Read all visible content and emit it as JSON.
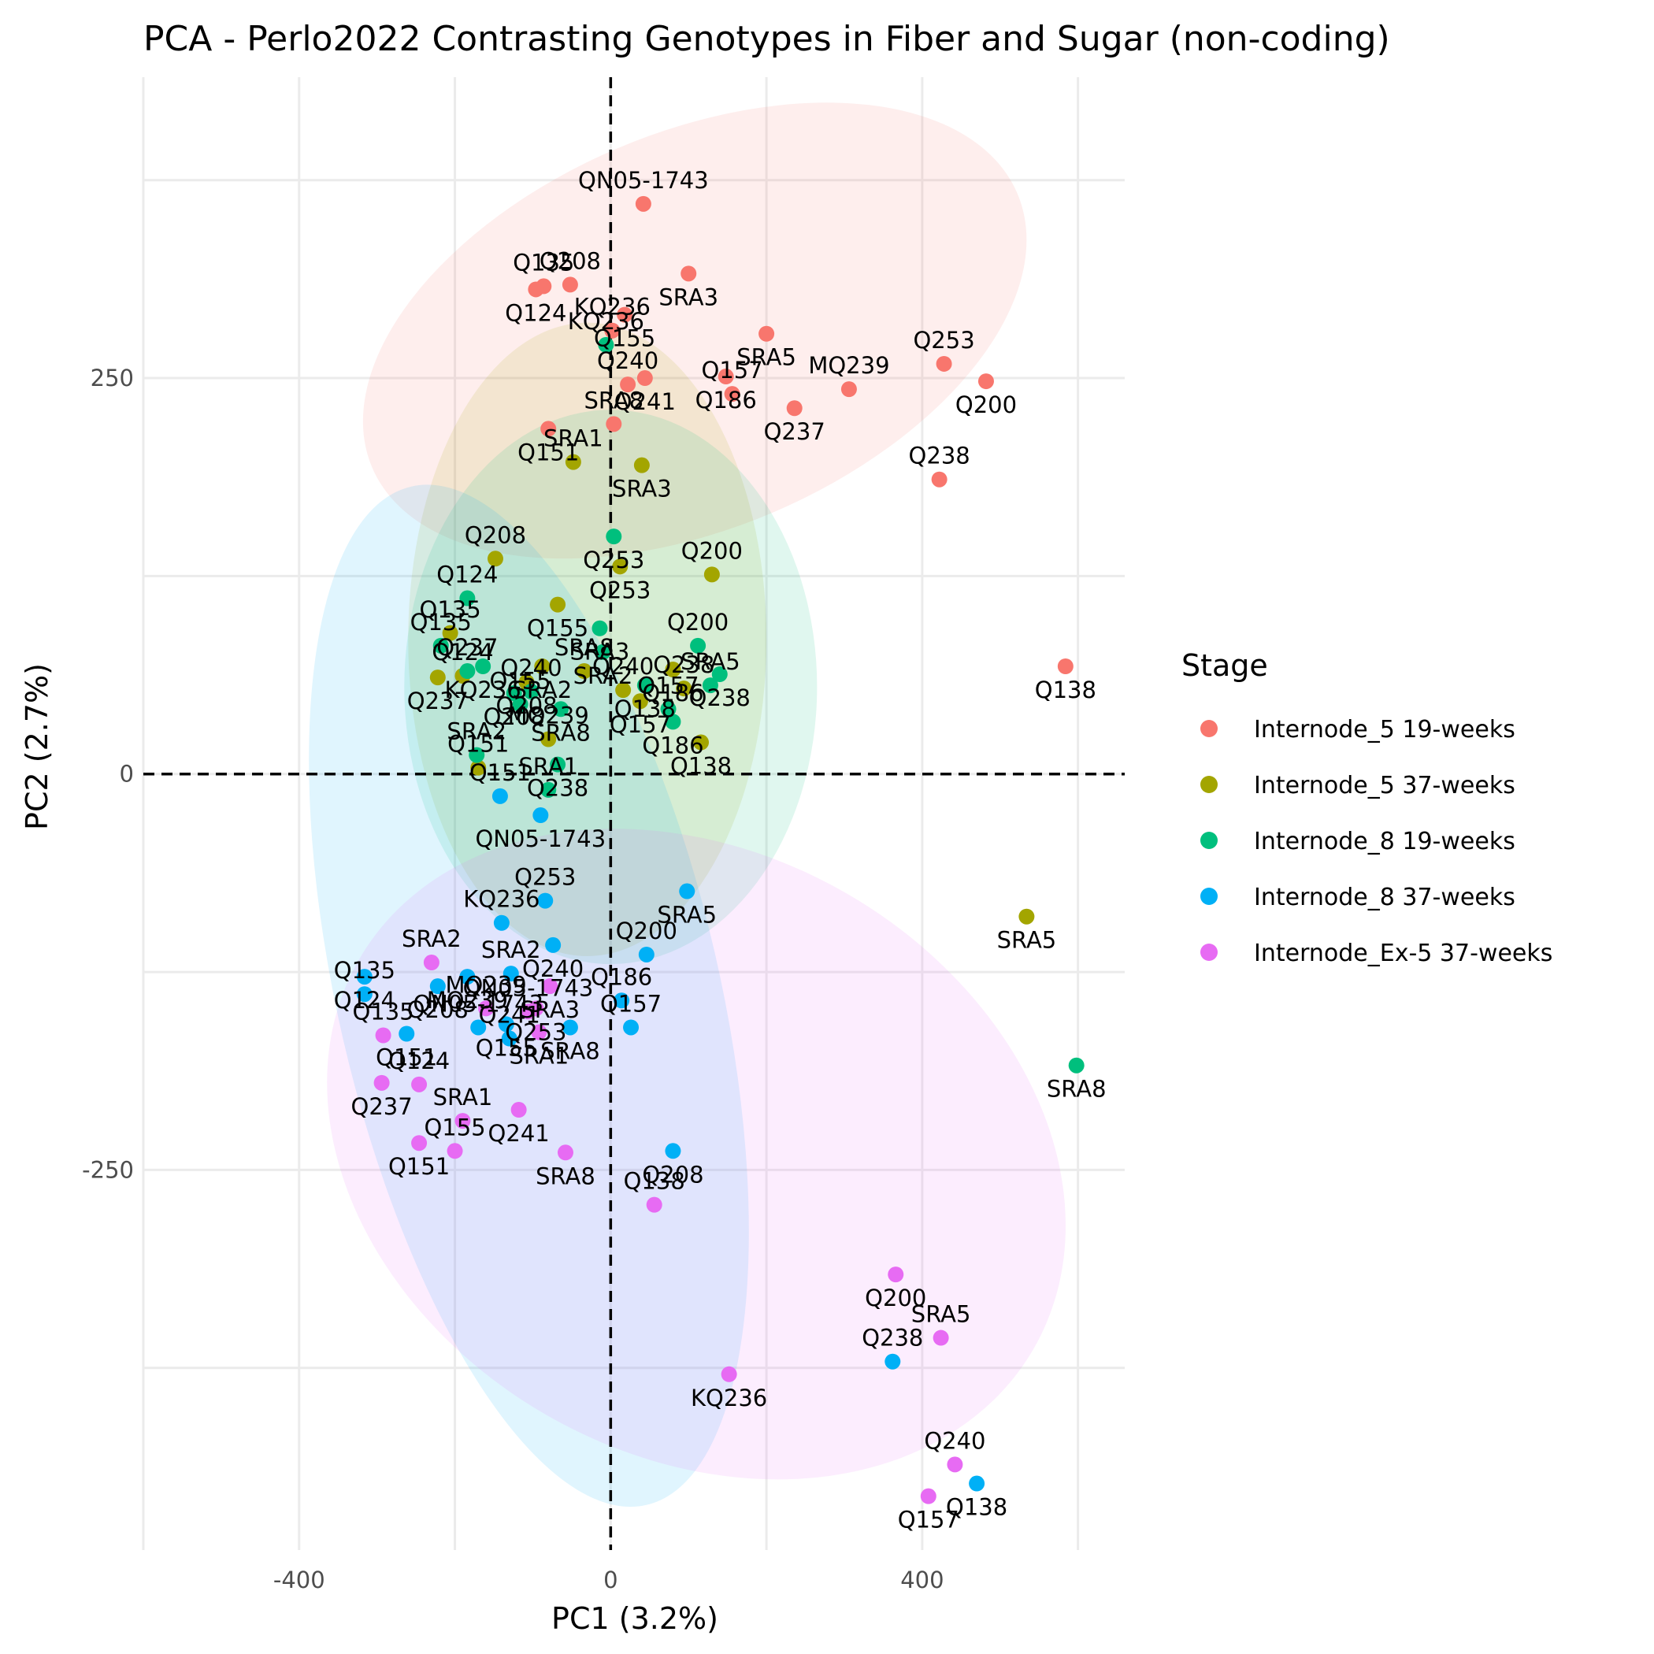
{
  "chart_data": {
    "type": "scatter",
    "title": "PCA - Perlo2022 Contrasting Genotypes in Fiber and Sugar (non-coding)",
    "xlabel": "PC1 (3.2%)",
    "ylabel": "PC2 (2.7%)",
    "xlim": [
      -600,
      660
    ],
    "ylim": [
      -490,
      440
    ],
    "x_ticks": [
      -400,
      0,
      400
    ],
    "y_ticks": [
      -250,
      0,
      250
    ],
    "grid": true,
    "reference_lines": {
      "x": 0,
      "y": 0,
      "style": "dashed"
    },
    "legend": {
      "title": "Stage",
      "placement": "right"
    },
    "series": [
      {
        "name": "Internode_5 19-weeks",
        "color": "#F8766D",
        "ellipse": {
          "cx": 108,
          "cy": 280,
          "rx": 450,
          "ry": 125,
          "angle": -23
        },
        "points": [
          {
            "label": "QN05-1743",
            "x": 42,
            "y": 360
          },
          {
            "label": "SRA3",
            "x": 100,
            "y": 316
          },
          {
            "label": "Q135",
            "x": -86,
            "y": 308
          },
          {
            "label": "Q124",
            "x": -96,
            "y": 306
          },
          {
            "label": "Q208",
            "x": -52,
            "y": 309
          },
          {
            "label": "Q155",
            "x": 18,
            "y": 290
          },
          {
            "label": "KQ236",
            "x": 2,
            "y": 280
          },
          {
            "label": "SRA5",
            "x": 200,
            "y": 278
          },
          {
            "label": "Q253",
            "x": 428,
            "y": 259
          },
          {
            "label": "Q200",
            "x": 482,
            "y": 248
          },
          {
            "label": "MQ239",
            "x": 306,
            "y": 243
          },
          {
            "label": "Q241",
            "x": 44,
            "y": 250
          },
          {
            "label": "Q240",
            "x": 22,
            "y": 246
          },
          {
            "label": "Q186",
            "x": 148,
            "y": 251
          },
          {
            "label": "Q157",
            "x": 156,
            "y": 240
          },
          {
            "label": "Q237",
            "x": 236,
            "y": 231
          },
          {
            "label": "SRA8",
            "x": 4,
            "y": 221
          },
          {
            "label": "Q151",
            "x": -80,
            "y": 218
          },
          {
            "label": "Q238",
            "x": 422,
            "y": 186
          },
          {
            "label": "Q138",
            "x": 584,
            "y": 68
          }
        ]
      },
      {
        "name": "Internode_5 37-weeks",
        "color": "#A3A500",
        "ellipse": {
          "cx": -30,
          "cy": 85,
          "rx": 230,
          "ry": 200,
          "angle": 0
        },
        "points": [
          {
            "label": "SRA1",
            "x": -48,
            "y": 197
          },
          {
            "label": "SRA3",
            "x": 40,
            "y": 195
          },
          {
            "label": "Q208",
            "x": -148,
            "y": 136
          },
          {
            "label": "Q253",
            "x": 12,
            "y": 131
          },
          {
            "label": "Q200",
            "x": 130,
            "y": 126
          },
          {
            "label": "Q155",
            "x": -68,
            "y": 107
          },
          {
            "label": "Q135",
            "x": -206,
            "y": 89
          },
          {
            "label": "SRA2",
            "x": -88,
            "y": 68
          },
          {
            "label": "SRA8",
            "x": -34,
            "y": 65
          },
          {
            "label": "Q186",
            "x": 80,
            "y": 66
          },
          {
            "label": "Q124",
            "x": -190,
            "y": 62
          },
          {
            "label": "Q237",
            "x": -222,
            "y": 61
          },
          {
            "label": "Q240",
            "x": 16,
            "y": 53
          },
          {
            "label": "Q157",
            "x": 38,
            "y": 46
          },
          {
            "label": "Q238",
            "x": 94,
            "y": 54
          },
          {
            "label": "Q208",
            "x": -108,
            "y": 58
          },
          {
            "label": "MQ239",
            "x": -80,
            "y": 22
          },
          {
            "label": "Q138",
            "x": 116,
            "y": 20
          },
          {
            "label": "Q151",
            "x": -170,
            "y": 4
          },
          {
            "label": "SRA5",
            "x": 534,
            "y": -90
          }
        ]
      },
      {
        "name": "Internode_8 19-weeks",
        "color": "#00BF7D",
        "ellipse": {
          "cx": 0,
          "cy": 55,
          "rx": 265,
          "ry": 175,
          "angle": 0
        },
        "points": [
          {
            "label": "KQ236",
            "x": -6,
            "y": 271
          },
          {
            "label": "Q253",
            "x": 4,
            "y": 150
          },
          {
            "label": "Q124",
            "x": -184,
            "y": 111
          },
          {
            "label": "SRA3",
            "x": -14,
            "y": 92
          },
          {
            "label": "Q135",
            "x": -218,
            "y": 81
          },
          {
            "label": "KQ236",
            "x": -164,
            "y": 68
          },
          {
            "label": "Q200",
            "x": 112,
            "y": 81
          },
          {
            "label": "Q238",
            "x": 140,
            "y": 63
          },
          {
            "label": "Q237",
            "x": -184,
            "y": 65
          },
          {
            "label": "SRA2",
            "x": -10,
            "y": 77
          },
          {
            "label": "SRA5",
            "x": 128,
            "y": 56
          },
          {
            "label": "Q138",
            "x": 44,
            "y": 56
          },
          {
            "label": "Q240",
            "x": -102,
            "y": 52
          },
          {
            "label": "Q208",
            "x": -124,
            "y": 51
          },
          {
            "label": "Q155",
            "x": -116,
            "y": 44
          },
          {
            "label": "SRA8",
            "x": -64,
            "y": 41
          },
          {
            "label": "Q157",
            "x": 74,
            "y": 41
          },
          {
            "label": "Q186",
            "x": 80,
            "y": 33
          },
          {
            "label": "SRA2",
            "x": -172,
            "y": 12
          },
          {
            "label": "Q238",
            "x": -68,
            "y": 6
          },
          {
            "label": "SRA1",
            "x": -80,
            "y": -10
          },
          {
            "label": "SRA8",
            "x": 598,
            "y": -184
          }
        ]
      },
      {
        "name": "Internode_8 37-weeks",
        "color": "#00B0F6",
        "ellipse": {
          "cx": -105,
          "cy": -140,
          "rx": 245,
          "ry": 330,
          "angle": -13
        },
        "points": [
          {
            "label": "Q151",
            "x": -142,
            "y": -14
          },
          {
            "label": "QN05-1743",
            "x": -90,
            "y": -26
          },
          {
            "label": "Q253",
            "x": -84,
            "y": -80
          },
          {
            "label": "SRA5",
            "x": 98,
            "y": -74
          },
          {
            "label": "KQ236",
            "x": -140,
            "y": -94
          },
          {
            "label": "Q240",
            "x": -74,
            "y": -108
          },
          {
            "label": "Q200",
            "x": 46,
            "y": -114
          },
          {
            "label": "Q124",
            "x": -316,
            "y": -128
          },
          {
            "label": "Q135",
            "x": -316,
            "y": -139
          },
          {
            "label": "MQ239",
            "x": -184,
            "y": -128
          },
          {
            "label": "SRA2",
            "x": -128,
            "y": -126
          },
          {
            "label": "Q208",
            "x": -222,
            "y": -134
          },
          {
            "label": "Q186",
            "x": 14,
            "y": -143
          },
          {
            "label": "Q151",
            "x": -262,
            "y": -164
          },
          {
            "label": "QN05-1743",
            "x": -170,
            "y": -160
          },
          {
            "label": "Q155",
            "x": -134,
            "y": -158
          },
          {
            "label": "Q241",
            "x": -130,
            "y": -167
          },
          {
            "label": "SRA8",
            "x": -52,
            "y": -160
          },
          {
            "label": "Q157",
            "x": 26,
            "y": -160
          },
          {
            "label": "Q208",
            "x": 80,
            "y": -238
          },
          {
            "label": "Q238",
            "x": 362,
            "y": -371
          },
          {
            "label": "Q138",
            "x": 470,
            "y": -448
          }
        ]
      },
      {
        "name": "Internode_Ex-5 37-weeks",
        "color": "#E76BF3",
        "ellipse": {
          "cx": 110,
          "cy": -240,
          "rx": 500,
          "ry": 190,
          "angle": 30
        },
        "points": [
          {
            "label": "SRA2",
            "x": -230,
            "y": -119
          },
          {
            "label": "SRA3",
            "x": -78,
            "y": -134
          },
          {
            "label": "MQ239",
            "x": -160,
            "y": -148
          },
          {
            "label": "Q253",
            "x": -96,
            "y": -148
          },
          {
            "label": "QN05-1743",
            "x": -106,
            "y": -150
          },
          {
            "label": "SRA1",
            "x": -92,
            "y": -163
          },
          {
            "label": "Q135",
            "x": -292,
            "y": -165
          },
          {
            "label": "Q237",
            "x": -294,
            "y": -195
          },
          {
            "label": "Q124",
            "x": -246,
            "y": -196
          },
          {
            "label": "Q241",
            "x": -118,
            "y": -212
          },
          {
            "label": "SRA1",
            "x": -190,
            "y": -219
          },
          {
            "label": "Q151",
            "x": -246,
            "y": -233
          },
          {
            "label": "Q155",
            "x": -200,
            "y": -238
          },
          {
            "label": "SRA8",
            "x": -58,
            "y": -239
          },
          {
            "label": "Q138",
            "x": 56,
            "y": -272
          },
          {
            "label": "Q200",
            "x": 366,
            "y": -316
          },
          {
            "label": "SRA5",
            "x": 424,
            "y": -356
          },
          {
            "label": "KQ236",
            "x": 152,
            "y": -379
          },
          {
            "label": "Q240",
            "x": 442,
            "y": -436
          },
          {
            "label": "Q157",
            "x": 408,
            "y": -456
          }
        ]
      }
    ]
  }
}
